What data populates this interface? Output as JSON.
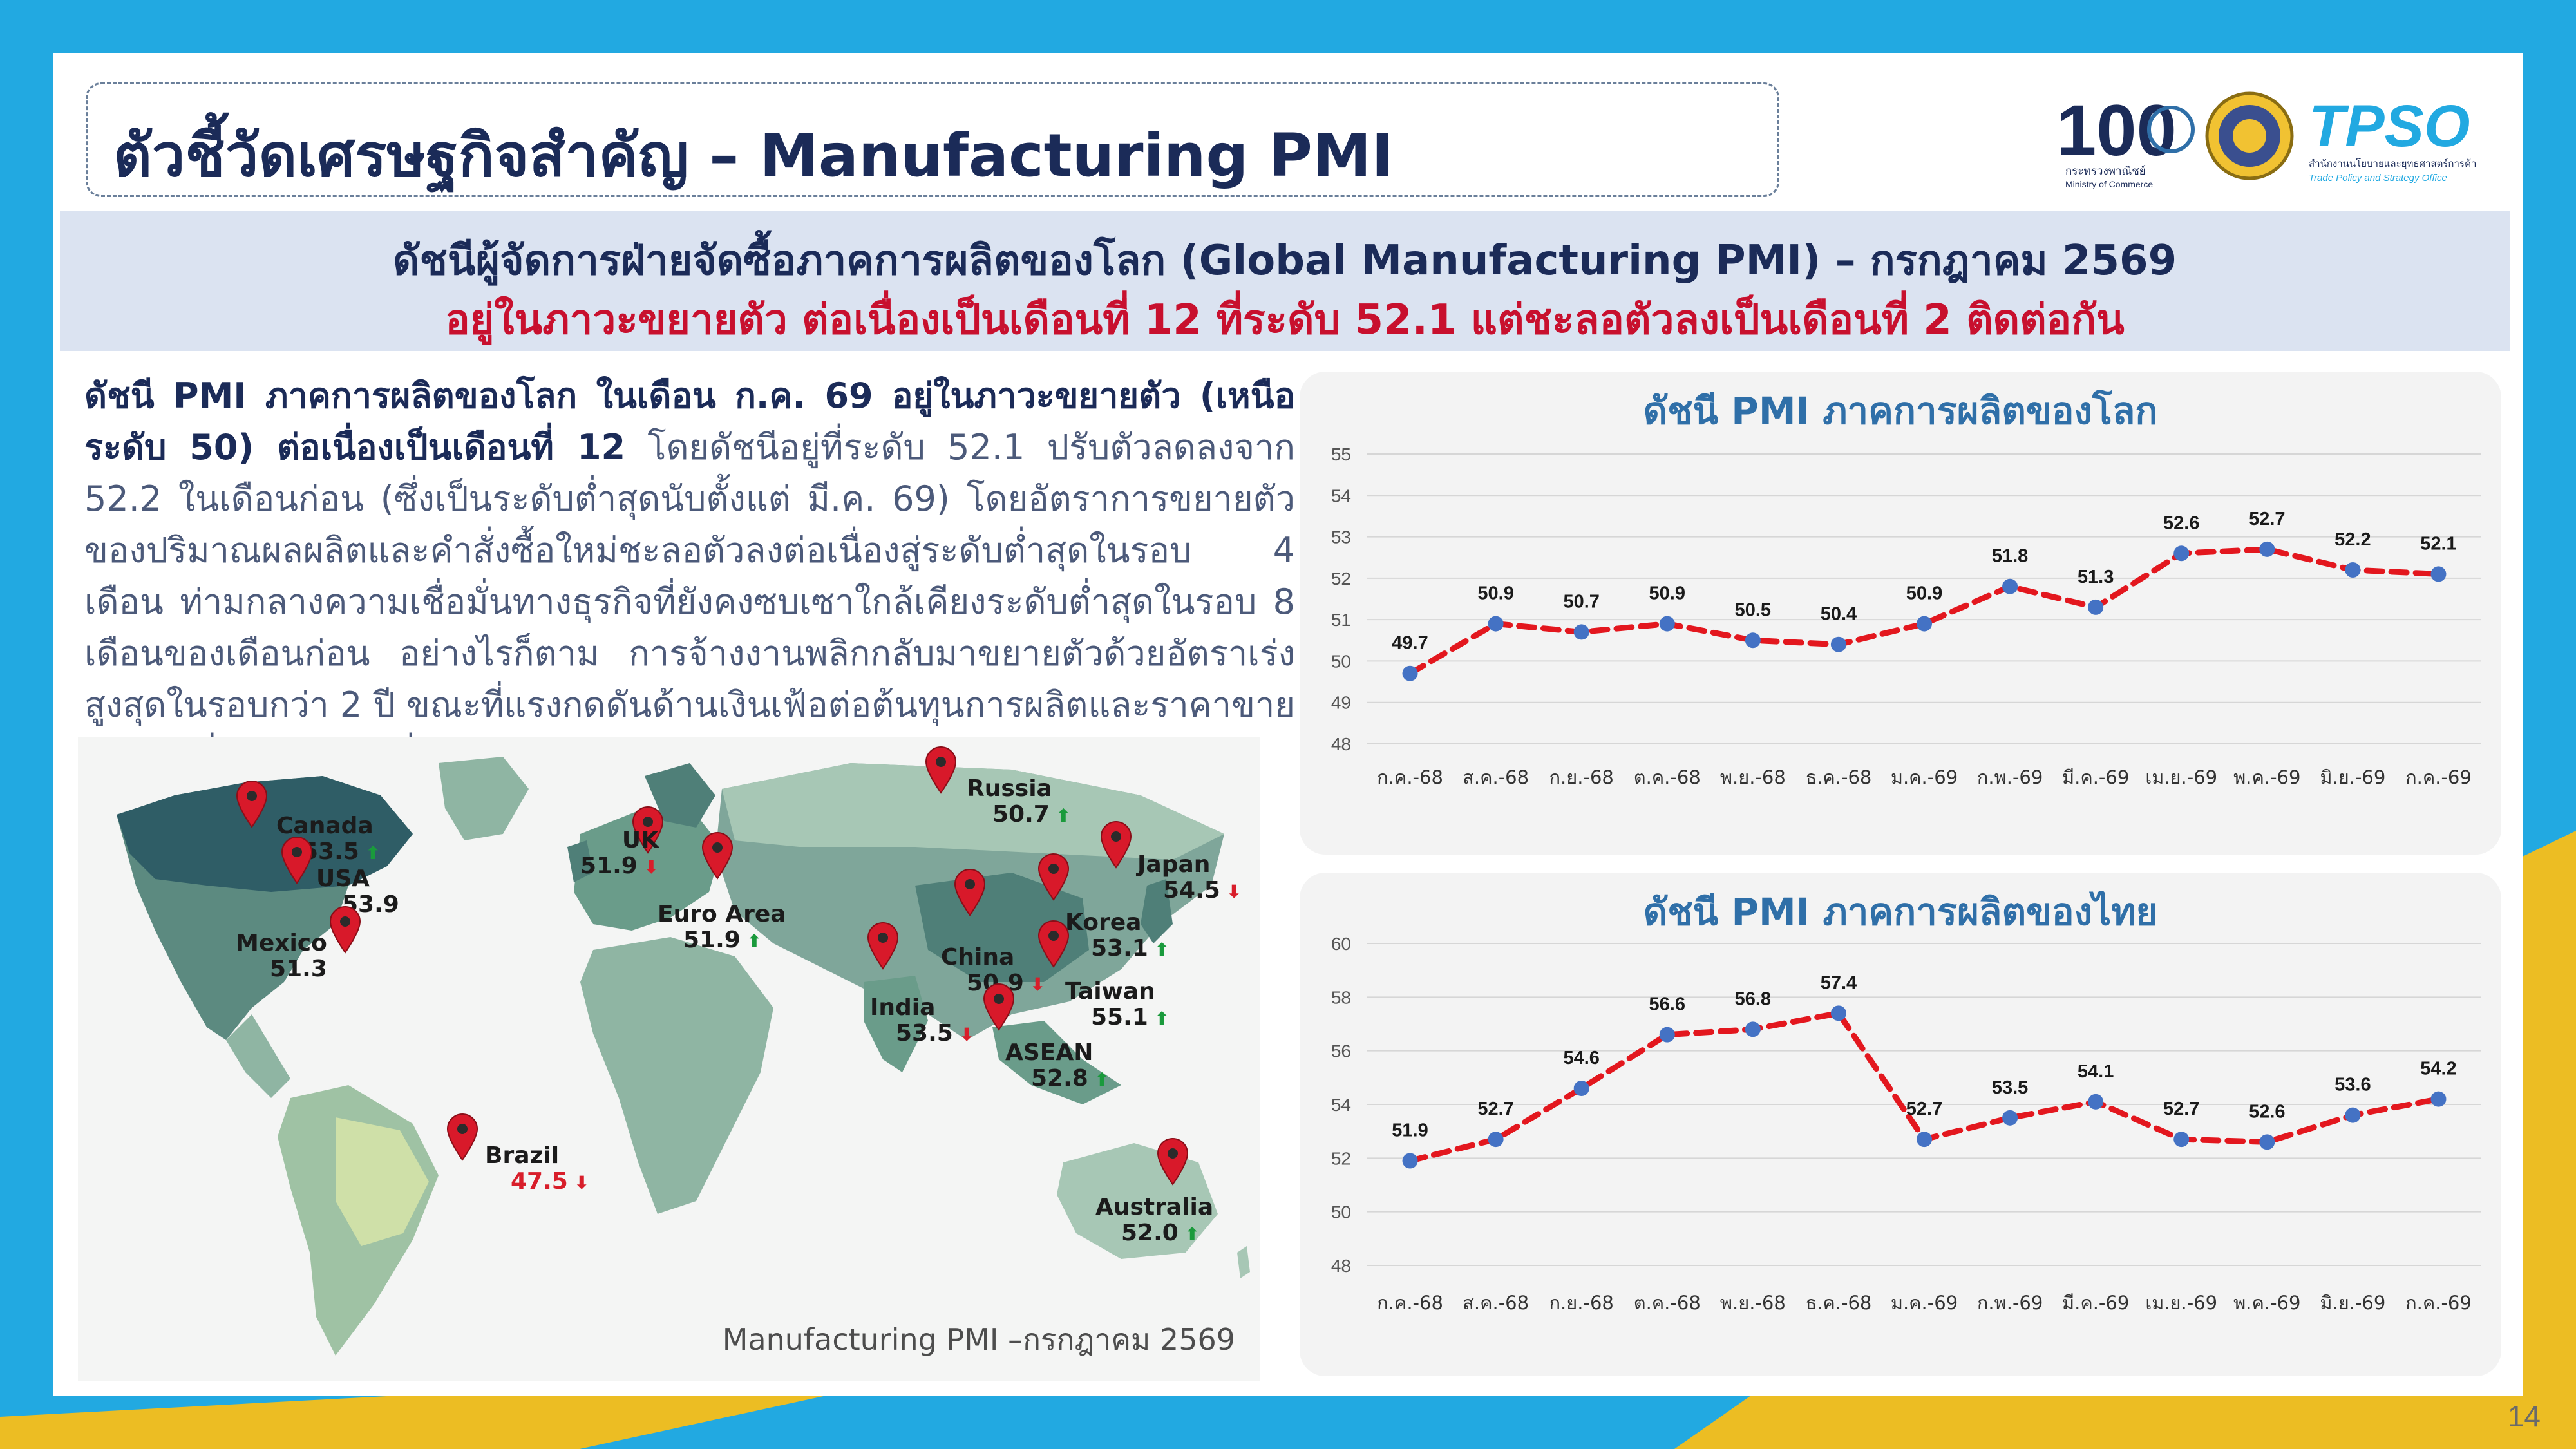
{
  "colors": {
    "background_blue": "#22a9e1",
    "accent_yellow": "#ecbd23",
    "title_navy": "#1b2b58",
    "headline_red": "#c8102e",
    "banner_bg": "#dbe3f1",
    "line_red": "#e3171e",
    "point_blue": "#4472c4",
    "chart_title_blue": "#2f6fa8",
    "up_green": "#1a9a3c",
    "down_red": "#d81e2a"
  },
  "page_title": "ตัวชี้วัดเศรษฐกิจสำคัญ – Manufacturing PMI",
  "logos": {
    "moc_number": "100",
    "moc_name_th": "กระทรวงพาณิชย์",
    "moc_name_en": "Ministry of Commerce",
    "tpso_name": "TPSO",
    "tpso_th": "สำนักงานนโยบายและยุทธศาสตร์การค้า",
    "tpso_en": "Trade Policy and Strategy Office"
  },
  "banner": {
    "line1": "ดัชนีผู้จัดการฝ่ายจัดซื้อภาคการผลิตของโลก (Global Manufacturing PMI) – กรกฎาคม 2569",
    "line2": "อยู่ในภาวะขยายตัว ต่อเนื่องเป็นเดือนที่ 12 ที่ระดับ 52.1 แต่ชะลอตัวลงเป็นเดือนที่ 2 ติดต่อกัน"
  },
  "summary": {
    "lead": "ดัชนี PMI ภาคการผลิตของโลก ในเดือน ก.ค. 69 อยู่ในภาวะขยายตัว (เหนือระดับ 50) ต่อเนื่องเป็นเดือนที่ 12",
    "rest": " โดยดัชนีอยู่ที่ระดับ 52.1 ปรับตัวลดลงจาก 52.2 ในเดือนก่อน (ซึ่งเป็นระดับต่ำสุดนับตั้งแต่ มี.ค. 69) โดยอัตราการขยายตัวของปริมาณผลผลิตและคำสั่งซื้อใหม่ชะลอตัวลงต่อเนื่องสู่ระดับต่ำสุดในรอบ 4 เดือน ท่ามกลางความเชื่อมั่นทางธุรกิจที่ยังคงซบเซาใกล้เคียงระดับต่ำสุดในรอบ 8 เดือนของเดือนก่อน อย่างไรก็ตาม การจ้างงานพลิกกลับมาขยายตัวด้วยอัตราเร่งสูงสุดในรอบกว่า 2 ปี ขณะที่แรงกดดันด้านเงินเฟ้อต่อต้นทุนการผลิตและราคาขายสินค้าคลี่คลายลงต่อเนื่อง"
  },
  "map": {
    "caption": "Manufacturing PMI –กรกฎาคม 2569",
    "countries": [
      {
        "name": "Canada",
        "value": "53.5",
        "trend": "up",
        "value_color": ""
      },
      {
        "name": "USA",
        "value": "53.9",
        "trend": "none",
        "value_color": ""
      },
      {
        "name": "Mexico",
        "value": "51.3",
        "trend": "none",
        "value_color": ""
      },
      {
        "name": "Brazil",
        "value": "47.5",
        "trend": "down",
        "value_color": "#d81e2a"
      },
      {
        "name": "UK",
        "value": "51.9",
        "trend": "down",
        "value_color": ""
      },
      {
        "name": "Euro Area",
        "value": "51.9",
        "trend": "up",
        "value_color": ""
      },
      {
        "name": "Russia",
        "value": "50.7",
        "trend": "up",
        "value_color": ""
      },
      {
        "name": "India",
        "value": "53.5",
        "trend": "down",
        "value_color": ""
      },
      {
        "name": "China",
        "value": "50.9",
        "trend": "down",
        "value_color": ""
      },
      {
        "name": "Korea",
        "value": "53.1",
        "trend": "up",
        "value_color": ""
      },
      {
        "name": "Japan",
        "value": "54.5",
        "trend": "down",
        "value_color": ""
      },
      {
        "name": "Taiwan",
        "value": "55.1",
        "trend": "up",
        "value_color": ""
      },
      {
        "name": "ASEAN",
        "value": "52.8",
        "trend": "up",
        "value_color": ""
      },
      {
        "name": "Australia",
        "value": "52.0",
        "trend": "up",
        "value_color": ""
      }
    ]
  },
  "chart_data": [
    {
      "type": "line",
      "title": "ดัชนี PMI ภาคการผลิตของโลก",
      "xlabel": "",
      "ylabel": "",
      "categories": [
        "ก.ค.-68",
        "ส.ค.-68",
        "ก.ย.-68",
        "ต.ค.-68",
        "พ.ย.-68",
        "ธ.ค.-68",
        "ม.ค.-69",
        "ก.พ.-69",
        "มี.ค.-69",
        "เม.ย.-69",
        "พ.ค.-69",
        "มิ.ย.-69",
        "ก.ค.-69"
      ],
      "series": [
        {
          "values": [
            49.7,
            50.9,
            50.7,
            50.9,
            50.5,
            50.4,
            50.9,
            51.8,
            51.3,
            52.6,
            52.7,
            52.2,
            52.1
          ]
        }
      ],
      "data_labels": [
        "49.7",
        "50.9",
        "50.7",
        "50.9",
        "50.5",
        "50.4",
        "50.9",
        "51.8",
        "51.3",
        "52.6",
        "52.7",
        "52.2",
        "52.1"
      ],
      "ylim": [
        48,
        55
      ],
      "yticks": [
        "48",
        "49",
        "50",
        "51",
        "52",
        "53",
        "54",
        "55"
      ],
      "grid": true,
      "legend": "none",
      "line_style": "dashed"
    },
    {
      "type": "line",
      "title": "ดัชนี PMI ภาคการผลิตของไทย",
      "xlabel": "",
      "ylabel": "",
      "categories": [
        "ก.ค.-68",
        "ส.ค.-68",
        "ก.ย.-68",
        "ต.ค.-68",
        "พ.ย.-68",
        "ธ.ค.-68",
        "ม.ค.-69",
        "ก.พ.-69",
        "มี.ค.-69",
        "เม.ย.-69",
        "พ.ค.-69",
        "มิ.ย.-69",
        "ก.ค.-69"
      ],
      "series": [
        {
          "values": [
            51.9,
            52.7,
            54.6,
            56.6,
            56.8,
            57.4,
            52.7,
            53.5,
            54.1,
            52.7,
            52.6,
            53.6,
            54.2
          ]
        }
      ],
      "data_labels": [
        "51.9",
        "52.7",
        "54.6",
        "56.6",
        "56.8",
        "57.4",
        "52.7",
        "53.5",
        "54.1",
        "52.7",
        "52.6",
        "53.6",
        "54.2"
      ],
      "ylim": [
        48,
        60
      ],
      "yticks": [
        "48",
        "50",
        "52",
        "54",
        "56",
        "58",
        "60"
      ],
      "grid": true,
      "legend": "none",
      "line_style": "dashed"
    }
  ],
  "page_number": "14"
}
